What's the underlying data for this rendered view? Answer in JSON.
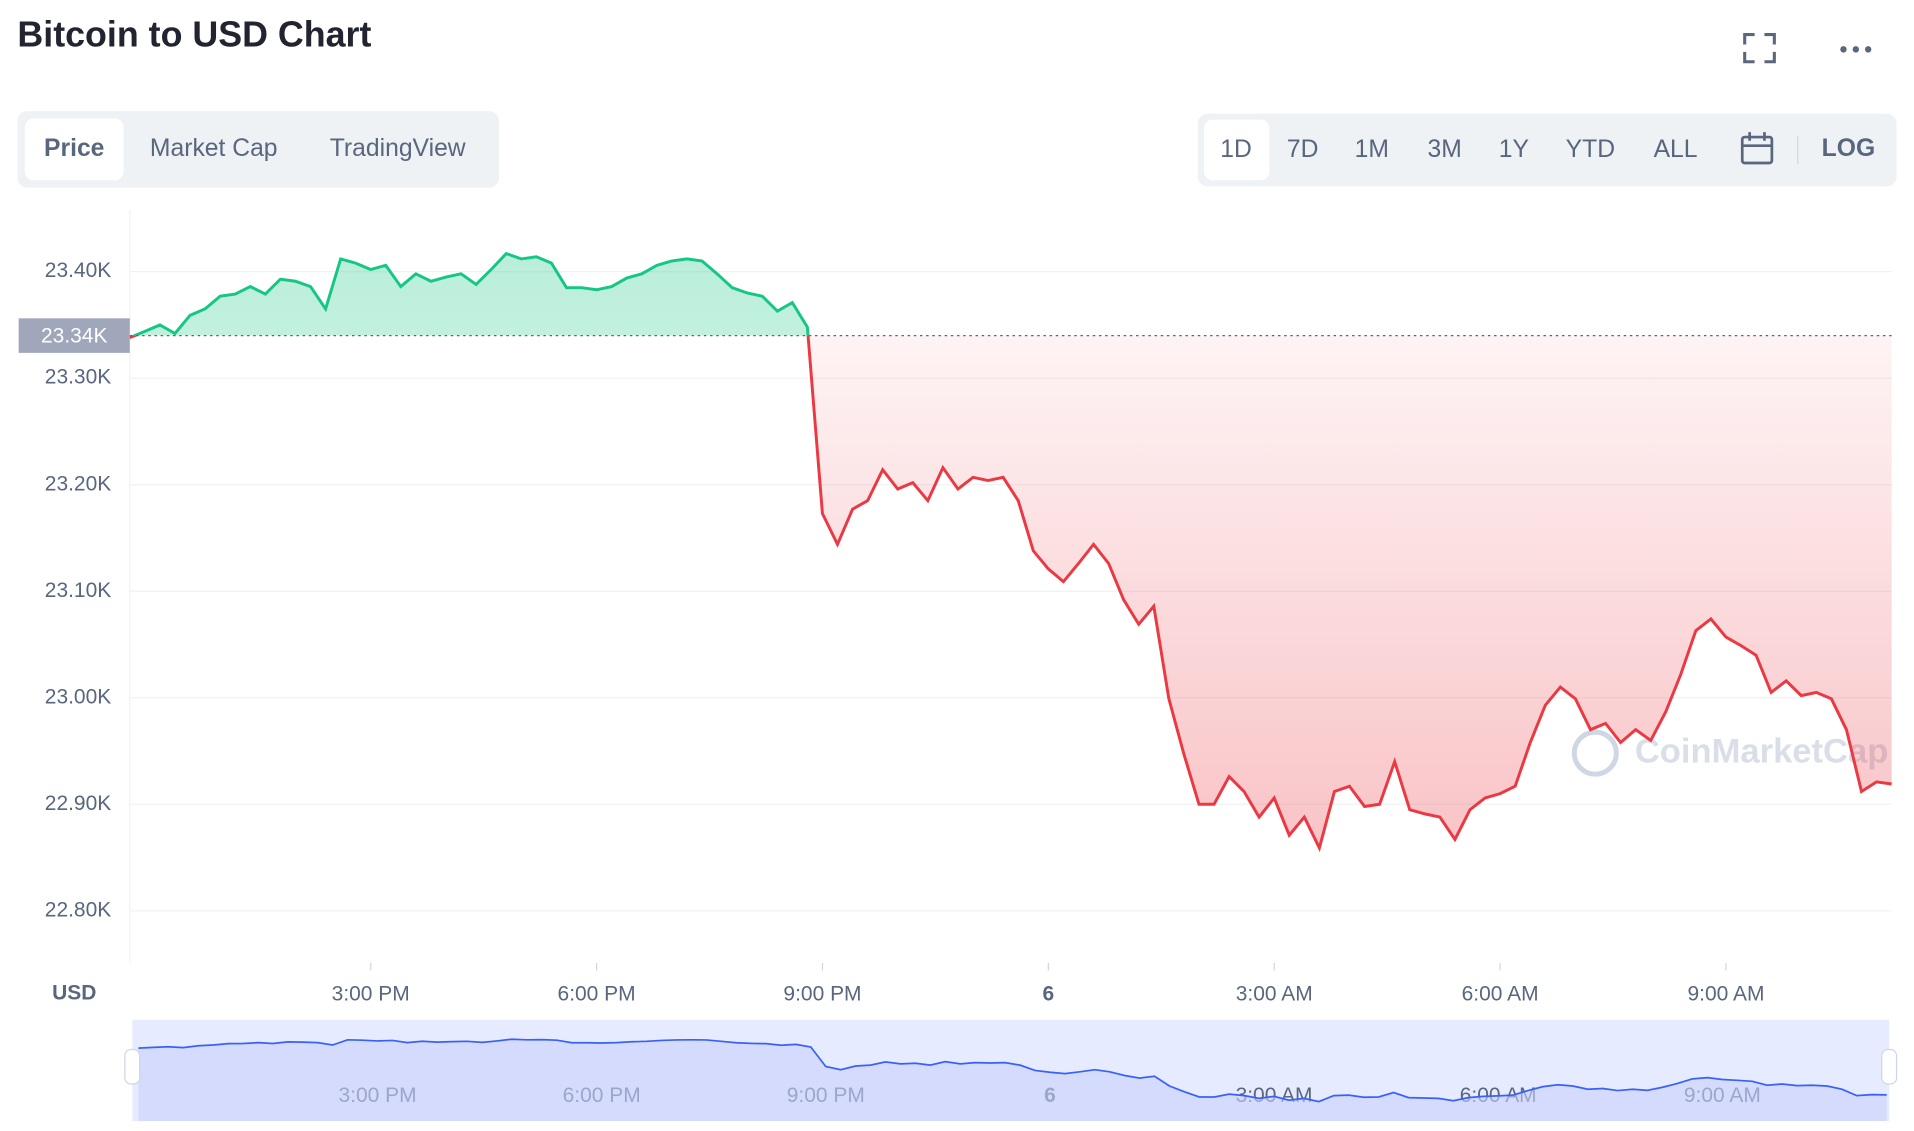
{
  "chart_data": {
    "type": "line",
    "title": "Bitcoin to USD Chart",
    "y_label": "USD",
    "watermark": "CoinMarketCap",
    "tabs": [
      "Price",
      "Market Cap",
      "TradingView"
    ],
    "ranges": [
      "1D",
      "7D",
      "1M",
      "3M",
      "1Y",
      "YTD",
      "ALL"
    ],
    "log_button": "LOG",
    "baseline": {
      "value": 23340,
      "label": "23.34K"
    },
    "ylim": [
      22751,
      23458
    ],
    "yticks": [
      {
        "value": 22800,
        "label": "22.80K"
      },
      {
        "value": 22900,
        "label": "22.90K"
      },
      {
        "value": 23000,
        "label": "23.00K"
      },
      {
        "value": 23100,
        "label": "23.10K"
      },
      {
        "value": 23200,
        "label": "23.20K"
      },
      {
        "value": 23300,
        "label": "23.30K"
      },
      {
        "value": 23400,
        "label": "23.40K"
      }
    ],
    "up_color": "#16c784",
    "down_color": "#ea3943",
    "categories": [
      null,
      null,
      null,
      null,
      null,
      null,
      null,
      null,
      null,
      null,
      null,
      null,
      null,
      null,
      null,
      null,
      "3:00 PM",
      null,
      null,
      null,
      null,
      null,
      null,
      null,
      null,
      null,
      null,
      null,
      null,
      null,
      null,
      "6:00 PM",
      null,
      null,
      null,
      null,
      null,
      null,
      null,
      null,
      null,
      null,
      null,
      null,
      null,
      null,
      "9:00 PM",
      null,
      null,
      null,
      null,
      null,
      null,
      null,
      null,
      null,
      null,
      null,
      null,
      null,
      null,
      "6",
      null,
      null,
      null,
      null,
      null,
      null,
      null,
      null,
      null,
      null,
      null,
      null,
      null,
      null,
      "3:00 AM",
      null,
      null,
      null,
      null,
      null,
      null,
      null,
      null,
      null,
      null,
      null,
      null,
      null,
      null,
      "6:00 AM",
      null,
      null,
      null,
      null,
      null,
      null,
      null,
      null,
      null,
      null,
      null,
      null,
      null,
      null,
      "9:00 AM",
      null,
      null,
      null,
      null,
      null,
      null,
      null,
      null,
      null,
      null,
      null
    ],
    "values": [
      23338,
      23344,
      23350,
      23342,
      23359,
      23365,
      23377,
      23379,
      23386,
      23379,
      23393,
      23391,
      23386,
      23365,
      23412,
      23408,
      23402,
      23406,
      23386,
      23398,
      23391,
      23395,
      23398,
      23388,
      23402,
      23417,
      23412,
      23414,
      23408,
      23385,
      23385,
      23383,
      23386,
      23394,
      23398,
      23406,
      23410,
      23412,
      23410,
      23398,
      23385,
      23380,
      23377,
      23363,
      23371,
      23348,
      23173,
      23144,
      23177,
      23185,
      23214,
      23196,
      23202,
      23185,
      23216,
      23196,
      23207,
      23204,
      23207,
      23185,
      23138,
      23121,
      23109,
      23126,
      23144,
      23126,
      23092,
      23069,
      23086,
      22999,
      22947,
      22900,
      22900,
      22926,
      22912,
      22888,
      22906,
      22871,
      22888,
      22859,
      22912,
      22917,
      22898,
      22900,
      22940,
      22895,
      22891,
      22888,
      22867,
      22895,
      22906,
      22910,
      22917,
      22958,
      22993,
      23010,
      22999,
      22970,
      22976,
      22958,
      22970,
      22960,
      22987,
      23022,
      23063,
      23074,
      23057,
      23049,
      23040,
      23005,
      23016,
      23002,
      23005,
      22999,
      22970,
      22912,
      22921,
      22919
    ]
  }
}
